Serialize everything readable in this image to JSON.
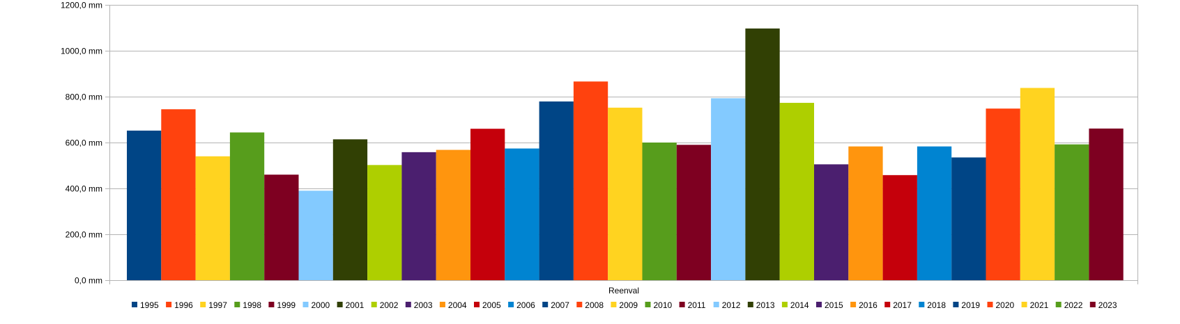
{
  "chart_data": {
    "type": "bar",
    "title": "",
    "xlabel": "Reenval",
    "ylabel": "",
    "categories": [
      "Reenval"
    ],
    "ylim": [
      0,
      1200
    ],
    "ytick_values": [
      0,
      200,
      400,
      600,
      800,
      1000,
      1200
    ],
    "ytick_labels": [
      "0,0 mm",
      "200,0 mm",
      "400,0 mm",
      "600,0 mm",
      "800,0 mm",
      "1000,0 mm",
      "1200,0 mm"
    ],
    "grid": true,
    "legend_position": "bottom",
    "series": [
      {
        "name": "1995",
        "values": [
          652
        ],
        "color": "#004586"
      },
      {
        "name": "1996",
        "values": [
          745
        ],
        "color": "#ff420e"
      },
      {
        "name": "1997",
        "values": [
          540
        ],
        "color": "#ffd320"
      },
      {
        "name": "1998",
        "values": [
          644
        ],
        "color": "#579d1c"
      },
      {
        "name": "1999",
        "values": [
          460
        ],
        "color": "#7e0021"
      },
      {
        "name": "2000",
        "values": [
          390
        ],
        "color": "#83caff"
      },
      {
        "name": "2001",
        "values": [
          614
        ],
        "color": "#314004"
      },
      {
        "name": "2002",
        "values": [
          502
        ],
        "color": "#aecf00"
      },
      {
        "name": "2003",
        "values": [
          558
        ],
        "color": "#4b1f6f"
      },
      {
        "name": "2004",
        "values": [
          568
        ],
        "color": "#ff950e"
      },
      {
        "name": "2005",
        "values": [
          660
        ],
        "color": "#c5000b"
      },
      {
        "name": "2006",
        "values": [
          574
        ],
        "color": "#0084d1"
      },
      {
        "name": "2007",
        "values": [
          779
        ],
        "color": "#004586"
      },
      {
        "name": "2008",
        "values": [
          866
        ],
        "color": "#ff420e"
      },
      {
        "name": "2009",
        "values": [
          752
        ],
        "color": "#ffd320"
      },
      {
        "name": "2010",
        "values": [
          600
        ],
        "color": "#579d1c"
      },
      {
        "name": "2011",
        "values": [
          590
        ],
        "color": "#7e0021"
      },
      {
        "name": "2012",
        "values": [
          793
        ],
        "color": "#83caff"
      },
      {
        "name": "2013",
        "values": [
          1097
        ],
        "color": "#314004"
      },
      {
        "name": "2014",
        "values": [
          773
        ],
        "color": "#aecf00"
      },
      {
        "name": "2015",
        "values": [
          505
        ],
        "color": "#4b1f6f"
      },
      {
        "name": "2016",
        "values": [
          583
        ],
        "color": "#ff950e"
      },
      {
        "name": "2017",
        "values": [
          458
        ],
        "color": "#c5000b"
      },
      {
        "name": "2018",
        "values": [
          583
        ],
        "color": "#0084d1"
      },
      {
        "name": "2019",
        "values": [
          535
        ],
        "color": "#004586"
      },
      {
        "name": "2020",
        "values": [
          748
        ],
        "color": "#ff420e"
      },
      {
        "name": "2021",
        "values": [
          838
        ],
        "color": "#ffd320"
      },
      {
        "name": "2022",
        "values": [
          592
        ],
        "color": "#579d1c"
      },
      {
        "name": "2023",
        "values": [
          661
        ],
        "color": "#7e0021"
      }
    ]
  }
}
